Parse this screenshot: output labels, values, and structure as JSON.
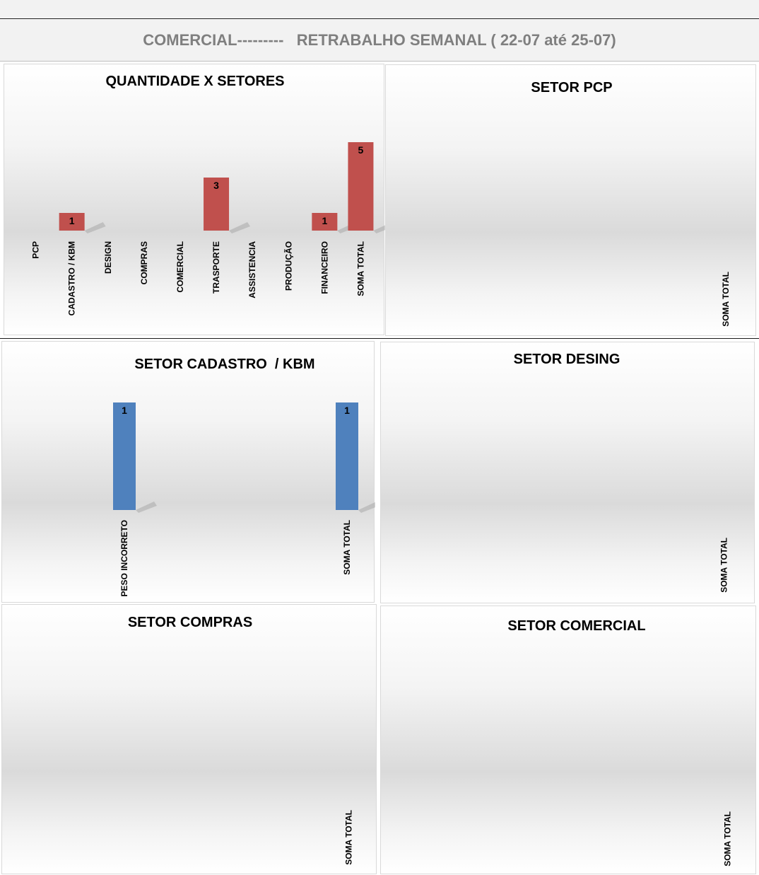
{
  "page": {
    "title": "COMERCIAL---------   RETRABALHO SEMANAL ( 22-07 até 25-07)"
  },
  "colors": {
    "red_bar": "#c0504d",
    "blue_bar": "#4f81bd"
  },
  "chart_data": [
    {
      "id": "quantidade",
      "type": "bar",
      "title": "QUANTIDADE X SETORES",
      "categories": [
        "PCP",
        "CADASTRO / KBM",
        "DESIGN",
        "COMPRAS",
        "COMERCIAL",
        "TRASPORTE",
        "ASSISTENCIA",
        "PRODUÇÃO",
        "FINANCEIRO",
        "SOMA TOTAL"
      ],
      "values": [
        null,
        1,
        null,
        null,
        null,
        3,
        null,
        null,
        1,
        5
      ],
      "data_labels": true,
      "color": "#c0504d",
      "grid": false,
      "legend": "none"
    },
    {
      "id": "pcp",
      "type": "bar",
      "title": "SETOR PCP",
      "categories": [
        "SOMA TOTAL"
      ],
      "values": [
        null
      ],
      "grid": false,
      "legend": "none"
    },
    {
      "id": "cadastro",
      "type": "bar",
      "title": "SETOR CADASTRO  / KBM",
      "categories": [
        "PESO INCORRETO",
        "SOMA TOTAL"
      ],
      "values": [
        1,
        1
      ],
      "data_labels": true,
      "color": "#4f81bd",
      "grid": false,
      "legend": "none"
    },
    {
      "id": "desing",
      "type": "bar",
      "title": "SETOR DESING",
      "categories": [
        "SOMA TOTAL"
      ],
      "values": [
        null
      ],
      "grid": false,
      "legend": "none"
    },
    {
      "id": "compras",
      "type": "bar",
      "title": "SETOR COMPRAS",
      "categories": [
        "SOMA TOTAL"
      ],
      "values": [
        null
      ],
      "grid": false,
      "legend": "none"
    },
    {
      "id": "comercial",
      "type": "bar",
      "title": "SETOR COMERCIAL",
      "categories": [
        "SOMA TOTAL"
      ],
      "values": [
        null
      ],
      "grid": false,
      "legend": "none"
    }
  ]
}
